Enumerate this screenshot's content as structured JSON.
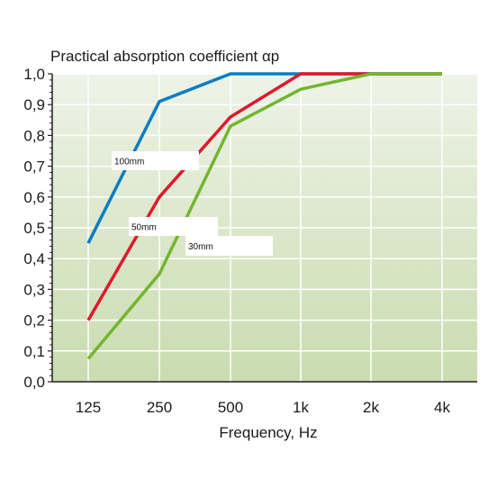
{
  "chart_data": {
    "type": "line",
    "title": "Practical absorption coefficient αp",
    "xlabel": "Frequency, Hz",
    "ylabel": "",
    "categories": [
      "125",
      "250",
      "500",
      "1k",
      "2k",
      "4k"
    ],
    "yticks": [
      "0,0",
      "0,1",
      "0,2",
      "0,3",
      "0,4",
      "0,5",
      "0,6",
      "0,7",
      "0,8",
      "0,9",
      "1,0"
    ],
    "ylim": [
      0,
      1.0
    ],
    "grid": true,
    "series": [
      {
        "name": "100mm",
        "color": "#0a7dc2",
        "values": [
          0.45,
          0.91,
          1.0,
          1.0,
          1.0,
          1.0
        ]
      },
      {
        "name": "50mm",
        "color": "#e0182d",
        "values": [
          0.2,
          0.6,
          0.86,
          1.0,
          1.0,
          1.0
        ]
      },
      {
        "name": "30mm",
        "color": "#72b62e",
        "values": [
          0.075,
          0.35,
          0.83,
          0.95,
          1.0,
          1.0
        ]
      }
    ],
    "colors": {
      "background_top": "#eef3e7",
      "background_bottom": "#c9dcb0",
      "grid": "#ffffff",
      "axis": "#222222"
    }
  }
}
